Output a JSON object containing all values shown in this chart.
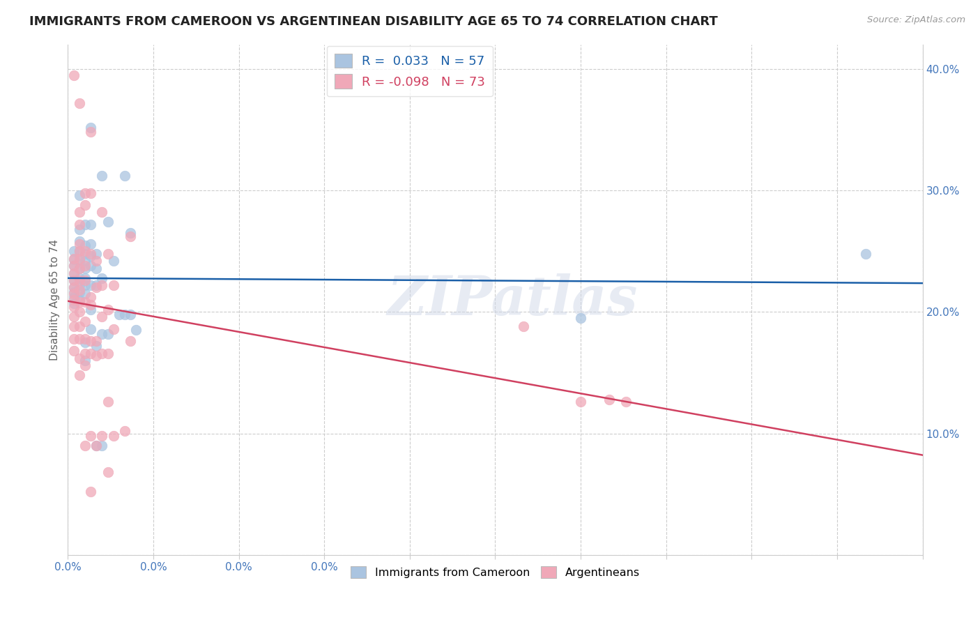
{
  "title": "IMMIGRANTS FROM CAMEROON VS ARGENTINEAN DISABILITY AGE 65 TO 74 CORRELATION CHART",
  "source": "Source: ZipAtlas.com",
  "ylabel": "Disability Age 65 to 74",
  "xmin": 0.0,
  "xmax": 0.15,
  "ymin": 0.0,
  "ymax": 0.42,
  "xticks": [
    0.0,
    0.015,
    0.03,
    0.045,
    0.06,
    0.075,
    0.09,
    0.105,
    0.12,
    0.135,
    0.15
  ],
  "xticklabels_show": {
    "0.0": "0.0%"
  },
  "yticks_right": [
    0.0,
    0.1,
    0.2,
    0.3,
    0.4
  ],
  "ytick_labels_right": [
    "",
    "10.0%",
    "20.0%",
    "30.0%",
    "40.0%"
  ],
  "blue_R": "0.033",
  "blue_N": "57",
  "pink_R": "-0.098",
  "pink_N": "73",
  "blue_color": "#aac4e0",
  "pink_color": "#f0a8b8",
  "blue_line_color": "#1a5fa8",
  "pink_line_color": "#d04060",
  "legend_label_blue": "Immigrants from Cameroon",
  "legend_label_pink": "Argentineans",
  "watermark": "ZIPatlas",
  "blue_points": [
    [
      0.001,
      0.25
    ],
    [
      0.001,
      0.243
    ],
    [
      0.001,
      0.238
    ],
    [
      0.001,
      0.232
    ],
    [
      0.001,
      0.226
    ],
    [
      0.001,
      0.22
    ],
    [
      0.001,
      0.216
    ],
    [
      0.001,
      0.212
    ],
    [
      0.001,
      0.207
    ],
    [
      0.002,
      0.296
    ],
    [
      0.002,
      0.268
    ],
    [
      0.002,
      0.258
    ],
    [
      0.002,
      0.25
    ],
    [
      0.002,
      0.242
    ],
    [
      0.002,
      0.236
    ],
    [
      0.002,
      0.228
    ],
    [
      0.002,
      0.222
    ],
    [
      0.002,
      0.216
    ],
    [
      0.002,
      0.21
    ],
    [
      0.003,
      0.272
    ],
    [
      0.003,
      0.255
    ],
    [
      0.003,
      0.248
    ],
    [
      0.003,
      0.242
    ],
    [
      0.003,
      0.236
    ],
    [
      0.003,
      0.228
    ],
    [
      0.003,
      0.222
    ],
    [
      0.003,
      0.215
    ],
    [
      0.003,
      0.175
    ],
    [
      0.003,
      0.16
    ],
    [
      0.004,
      0.352
    ],
    [
      0.004,
      0.272
    ],
    [
      0.004,
      0.256
    ],
    [
      0.004,
      0.246
    ],
    [
      0.004,
      0.238
    ],
    [
      0.004,
      0.222
    ],
    [
      0.004,
      0.202
    ],
    [
      0.004,
      0.186
    ],
    [
      0.005,
      0.248
    ],
    [
      0.005,
      0.236
    ],
    [
      0.005,
      0.222
    ],
    [
      0.005,
      0.172
    ],
    [
      0.005,
      0.09
    ],
    [
      0.006,
      0.312
    ],
    [
      0.006,
      0.228
    ],
    [
      0.006,
      0.182
    ],
    [
      0.006,
      0.09
    ],
    [
      0.007,
      0.274
    ],
    [
      0.007,
      0.182
    ],
    [
      0.008,
      0.242
    ],
    [
      0.009,
      0.198
    ],
    [
      0.01,
      0.312
    ],
    [
      0.01,
      0.198
    ],
    [
      0.011,
      0.265
    ],
    [
      0.011,
      0.198
    ],
    [
      0.012,
      0.185
    ],
    [
      0.09,
      0.195
    ],
    [
      0.14,
      0.248
    ]
  ],
  "pink_points": [
    [
      0.001,
      0.395
    ],
    [
      0.001,
      0.244
    ],
    [
      0.001,
      0.238
    ],
    [
      0.001,
      0.232
    ],
    [
      0.001,
      0.226
    ],
    [
      0.001,
      0.22
    ],
    [
      0.001,
      0.215
    ],
    [
      0.001,
      0.21
    ],
    [
      0.001,
      0.204
    ],
    [
      0.001,
      0.196
    ],
    [
      0.001,
      0.188
    ],
    [
      0.001,
      0.178
    ],
    [
      0.001,
      0.168
    ],
    [
      0.002,
      0.372
    ],
    [
      0.002,
      0.282
    ],
    [
      0.002,
      0.272
    ],
    [
      0.002,
      0.256
    ],
    [
      0.002,
      0.25
    ],
    [
      0.002,
      0.244
    ],
    [
      0.002,
      0.236
    ],
    [
      0.002,
      0.226
    ],
    [
      0.002,
      0.218
    ],
    [
      0.002,
      0.208
    ],
    [
      0.002,
      0.2
    ],
    [
      0.002,
      0.188
    ],
    [
      0.002,
      0.178
    ],
    [
      0.002,
      0.162
    ],
    [
      0.002,
      0.148
    ],
    [
      0.003,
      0.298
    ],
    [
      0.003,
      0.288
    ],
    [
      0.003,
      0.25
    ],
    [
      0.003,
      0.238
    ],
    [
      0.003,
      0.226
    ],
    [
      0.003,
      0.208
    ],
    [
      0.003,
      0.192
    ],
    [
      0.003,
      0.178
    ],
    [
      0.003,
      0.166
    ],
    [
      0.003,
      0.156
    ],
    [
      0.003,
      0.09
    ],
    [
      0.004,
      0.348
    ],
    [
      0.004,
      0.298
    ],
    [
      0.004,
      0.248
    ],
    [
      0.004,
      0.212
    ],
    [
      0.004,
      0.206
    ],
    [
      0.004,
      0.176
    ],
    [
      0.004,
      0.166
    ],
    [
      0.004,
      0.098
    ],
    [
      0.004,
      0.052
    ],
    [
      0.005,
      0.242
    ],
    [
      0.005,
      0.22
    ],
    [
      0.005,
      0.176
    ],
    [
      0.005,
      0.164
    ],
    [
      0.005,
      0.09
    ],
    [
      0.006,
      0.282
    ],
    [
      0.006,
      0.222
    ],
    [
      0.006,
      0.196
    ],
    [
      0.006,
      0.166
    ],
    [
      0.006,
      0.098
    ],
    [
      0.007,
      0.248
    ],
    [
      0.007,
      0.202
    ],
    [
      0.007,
      0.166
    ],
    [
      0.007,
      0.126
    ],
    [
      0.007,
      0.068
    ],
    [
      0.008,
      0.222
    ],
    [
      0.008,
      0.186
    ],
    [
      0.008,
      0.098
    ],
    [
      0.01,
      0.102
    ],
    [
      0.011,
      0.262
    ],
    [
      0.011,
      0.176
    ],
    [
      0.08,
      0.188
    ],
    [
      0.09,
      0.126
    ],
    [
      0.095,
      0.128
    ],
    [
      0.098,
      0.126
    ]
  ]
}
